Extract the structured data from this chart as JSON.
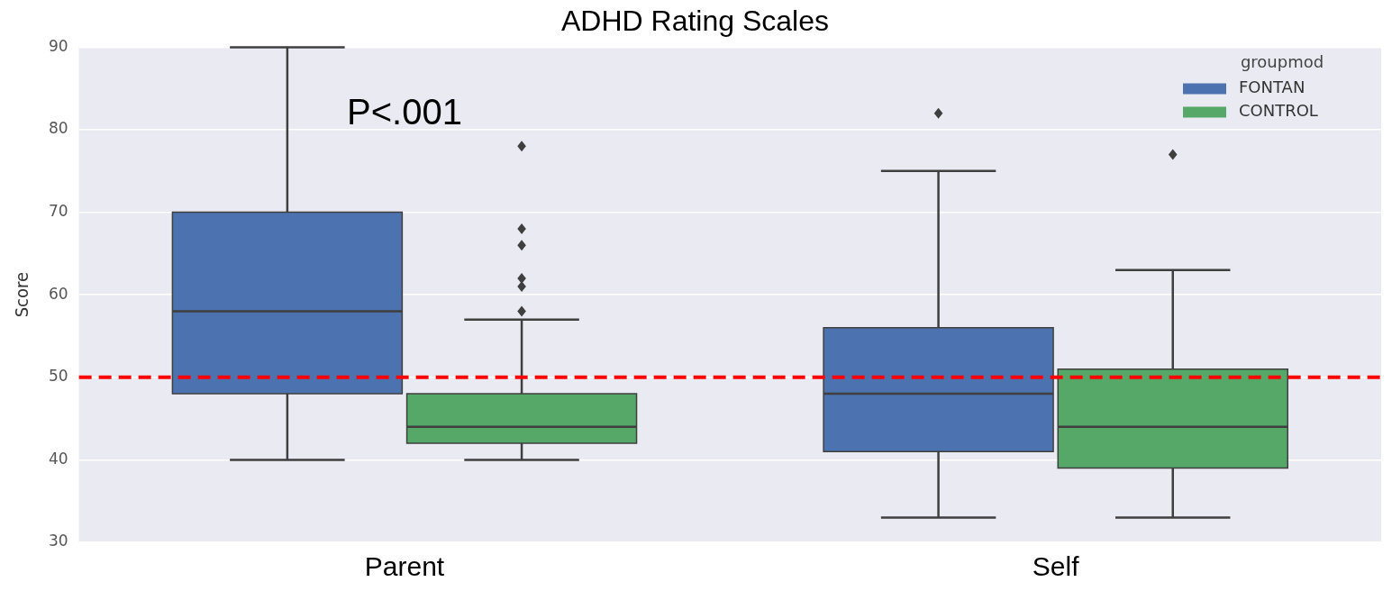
{
  "chart_data": {
    "type": "box",
    "title": "ADHD Rating Scales",
    "ylabel": "Score",
    "categories": [
      "Parent",
      "Self"
    ],
    "series": [
      {
        "name": "FONTAN",
        "color": "#4c72b0",
        "boxes": [
          {
            "low": 40,
            "q1": 48,
            "median": 58,
            "q3": 70,
            "high": 90
          },
          {
            "low": 33,
            "q1": 41,
            "median": 48,
            "q3": 56,
            "high": 75,
            "outliers": [
              82
            ]
          }
        ]
      },
      {
        "name": "CONTROL",
        "color": "#55a868",
        "boxes": [
          {
            "low": 40,
            "q1": 42,
            "median": 44,
            "q3": 48,
            "high": 57,
            "outliers": [
              58,
              61,
              62,
              66,
              68,
              78
            ]
          },
          {
            "low": 33,
            "q1": 39,
            "median": 44,
            "q3": 51,
            "high": 63,
            "outliers": [
              77
            ]
          }
        ]
      }
    ],
    "ylim": [
      30,
      90
    ],
    "yticks": [
      30,
      40,
      50,
      60,
      70,
      80,
      90
    ],
    "grid": "y",
    "legend": "top right",
    "legend_title": "groupmod",
    "marker": "diamond",
    "ref_lines": [
      {
        "axis": "y",
        "value": 50,
        "color": "#ff0000",
        "line_style": "dashed"
      }
    ],
    "annotations": [
      "P<.001"
    ]
  }
}
